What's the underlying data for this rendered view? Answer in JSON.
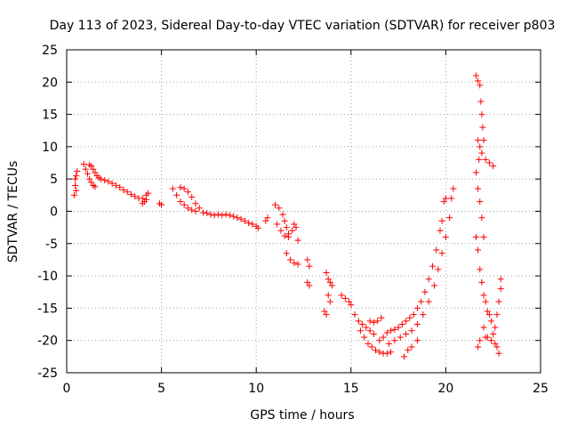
{
  "chart_data": {
    "type": "scatter",
    "title": "Day 113 of 2023, Sidereal Day-to-day VTEC variation (SDTVAR) for receiver p803",
    "xlabel": "GPS time / hours",
    "ylabel": "SDTVAR / TECUs",
    "xlim": [
      0,
      25
    ],
    "ylim": [
      -25,
      25
    ],
    "xticks": [
      0,
      5,
      10,
      15,
      20,
      25
    ],
    "yticks": [
      -25,
      -20,
      -15,
      -10,
      -5,
      0,
      5,
      10,
      15,
      20,
      25
    ],
    "grid": true,
    "marker": "+",
    "color": "#ff0000",
    "series": [
      {
        "name": "SDTVAR",
        "points": [
          [
            0.4,
            2.5
          ],
          [
            0.45,
            4.0
          ],
          [
            0.5,
            5.5
          ],
          [
            0.55,
            6.2
          ],
          [
            0.5,
            3.2
          ],
          [
            0.45,
            5.0
          ],
          [
            0.9,
            7.3
          ],
          [
            1.0,
            6.5
          ],
          [
            1.1,
            5.8
          ],
          [
            1.2,
            5.0
          ],
          [
            1.3,
            4.5
          ],
          [
            1.4,
            4.0
          ],
          [
            1.5,
            3.8
          ],
          [
            1.2,
            7.2
          ],
          [
            1.3,
            7.0
          ],
          [
            1.4,
            6.5
          ],
          [
            1.5,
            6.0
          ],
          [
            1.6,
            5.5
          ],
          [
            1.7,
            5.2
          ],
          [
            1.8,
            5.0
          ],
          [
            2.0,
            4.8
          ],
          [
            2.2,
            4.6
          ],
          [
            2.4,
            4.3
          ],
          [
            2.6,
            4.0
          ],
          [
            2.8,
            3.7
          ],
          [
            3.0,
            3.3
          ],
          [
            3.2,
            3.0
          ],
          [
            3.4,
            2.6
          ],
          [
            3.6,
            2.3
          ],
          [
            3.8,
            2.0
          ],
          [
            4.0,
            2.0
          ],
          [
            4.2,
            2.5
          ],
          [
            4.3,
            2.8
          ],
          [
            4.1,
            1.5
          ],
          [
            4.0,
            1.2
          ],
          [
            4.2,
            1.8
          ],
          [
            4.9,
            1.2
          ],
          [
            5.0,
            1.0
          ],
          [
            5.6,
            3.5
          ],
          [
            5.8,
            2.5
          ],
          [
            6.0,
            1.5
          ],
          [
            6.2,
            1.0
          ],
          [
            6.4,
            0.5
          ],
          [
            6.6,
            0.2
          ],
          [
            6.8,
            0
          ],
          [
            6.0,
            3.7
          ],
          [
            6.2,
            3.5
          ],
          [
            6.4,
            3.0
          ],
          [
            6.6,
            2.2
          ],
          [
            6.8,
            1.2
          ],
          [
            7.0,
            0.5
          ],
          [
            7.2,
            -0.2
          ],
          [
            7.4,
            -0.3
          ],
          [
            7.6,
            -0.5
          ],
          [
            7.8,
            -0.6
          ],
          [
            8.0,
            -0.5
          ],
          [
            8.2,
            -0.6
          ],
          [
            8.4,
            -0.5
          ],
          [
            8.6,
            -0.6
          ],
          [
            8.8,
            -0.8
          ],
          [
            9.0,
            -1.0
          ],
          [
            9.2,
            -1.2
          ],
          [
            9.4,
            -1.5
          ],
          [
            9.6,
            -1.8
          ],
          [
            9.8,
            -2.0
          ],
          [
            10.0,
            -2.3
          ],
          [
            10.1,
            -2.6
          ],
          [
            10.5,
            -1.5
          ],
          [
            10.6,
            -1.0
          ],
          [
            11.0,
            1.0
          ],
          [
            11.2,
            0.5
          ],
          [
            11.4,
            -0.5
          ],
          [
            11.5,
            -1.5
          ],
          [
            11.6,
            -2.5
          ],
          [
            11.7,
            -3.5
          ],
          [
            11.1,
            -2.0
          ],
          [
            11.3,
            -3.0
          ],
          [
            11.5,
            -3.8
          ],
          [
            11.7,
            -4.0
          ],
          [
            11.9,
            -3.0
          ],
          [
            12.0,
            -2.0
          ],
          [
            12.1,
            -2.5
          ],
          [
            12.2,
            -4.5
          ],
          [
            11.6,
            -6.5
          ],
          [
            11.8,
            -7.5
          ],
          [
            12.0,
            -8.0
          ],
          [
            12.2,
            -8.2
          ],
          [
            12.7,
            -7.5
          ],
          [
            12.8,
            -8.5
          ],
          [
            12.7,
            -11.0
          ],
          [
            12.8,
            -11.5
          ],
          [
            13.7,
            -9.5
          ],
          [
            13.8,
            -10.5
          ],
          [
            13.9,
            -11.0
          ],
          [
            14.0,
            -11.5
          ],
          [
            13.8,
            -13.0
          ],
          [
            13.9,
            -14.0
          ],
          [
            13.6,
            -15.5
          ],
          [
            13.7,
            -16.0
          ],
          [
            14.5,
            -13.0
          ],
          [
            14.7,
            -13.5
          ],
          [
            14.9,
            -14.0
          ],
          [
            15.0,
            -14.5
          ],
          [
            15.2,
            -16.0
          ],
          [
            15.4,
            -17.0
          ],
          [
            15.6,
            -17.5
          ],
          [
            15.8,
            -18.0
          ],
          [
            16.0,
            -18.5
          ],
          [
            16.2,
            -19.0
          ],
          [
            15.5,
            -18.5
          ],
          [
            15.7,
            -19.5
          ],
          [
            15.9,
            -20.5
          ],
          [
            16.1,
            -21.0
          ],
          [
            16.3,
            -21.5
          ],
          [
            16.5,
            -21.8
          ],
          [
            16.7,
            -22.0
          ],
          [
            16.9,
            -22.0
          ],
          [
            17.1,
            -21.8
          ],
          [
            16.5,
            -20.0
          ],
          [
            16.7,
            -19.5
          ],
          [
            16.9,
            -18.8
          ],
          [
            17.1,
            -18.5
          ],
          [
            17.3,
            -18.3
          ],
          [
            17.5,
            -18.0
          ],
          [
            17.7,
            -17.5
          ],
          [
            17.9,
            -17.0
          ],
          [
            18.1,
            -16.5
          ],
          [
            18.3,
            -16.0
          ],
          [
            18.5,
            -15.0
          ],
          [
            18.7,
            -14.0
          ],
          [
            18.9,
            -12.5
          ],
          [
            19.1,
            -10.5
          ],
          [
            19.3,
            -8.5
          ],
          [
            19.5,
            -6.0
          ],
          [
            19.7,
            -3.0
          ],
          [
            19.8,
            -1.5
          ],
          [
            19.9,
            1.5
          ],
          [
            20.0,
            2.0
          ],
          [
            16.0,
            -17.0
          ],
          [
            16.2,
            -17.2
          ],
          [
            16.4,
            -17.0
          ],
          [
            16.6,
            -16.5
          ],
          [
            17.0,
            -20.5
          ],
          [
            17.3,
            -20.0
          ],
          [
            17.6,
            -19.5
          ],
          [
            17.9,
            -19.0
          ],
          [
            18.2,
            -18.5
          ],
          [
            18.5,
            -17.5
          ],
          [
            18.8,
            -16.0
          ],
          [
            19.1,
            -14.0
          ],
          [
            19.4,
            -11.5
          ],
          [
            19.6,
            -9.0
          ],
          [
            19.8,
            -6.5
          ],
          [
            20.0,
            -4.0
          ],
          [
            20.2,
            -1.0
          ],
          [
            20.3,
            2.0
          ],
          [
            20.4,
            3.5
          ],
          [
            17.8,
            -22.5
          ],
          [
            18.0,
            -21.5
          ],
          [
            18.2,
            -21.0
          ],
          [
            18.5,
            -20.0
          ],
          [
            21.6,
            21.0
          ],
          [
            21.7,
            20.2
          ],
          [
            21.8,
            19.5
          ],
          [
            21.85,
            17.0
          ],
          [
            21.9,
            15.0
          ],
          [
            21.95,
            13.0
          ],
          [
            22.0,
            11.0
          ],
          [
            21.7,
            11.0
          ],
          [
            21.8,
            10.0
          ],
          [
            21.75,
            8.0
          ],
          [
            21.9,
            9.0
          ],
          [
            22.1,
            8.0
          ],
          [
            22.3,
            7.5
          ],
          [
            22.5,
            7.0
          ],
          [
            21.6,
            6.0
          ],
          [
            21.7,
            3.5
          ],
          [
            21.8,
            1.5
          ],
          [
            21.9,
            -1.0
          ],
          [
            22.0,
            -4.0
          ],
          [
            21.6,
            -4.0
          ],
          [
            21.7,
            -6.0
          ],
          [
            21.8,
            -9.0
          ],
          [
            21.9,
            -11.0
          ],
          [
            22.0,
            -13.0
          ],
          [
            22.1,
            -14.0
          ],
          [
            22.2,
            -15.5
          ],
          [
            22.3,
            -16.0
          ],
          [
            22.4,
            -17.0
          ],
          [
            22.0,
            -18.0
          ],
          [
            22.1,
            -19.5
          ],
          [
            21.8,
            -20.0
          ],
          [
            21.7,
            -21.0
          ],
          [
            22.2,
            -19.5
          ],
          [
            22.4,
            -20.0
          ],
          [
            22.6,
            -20.5
          ],
          [
            22.7,
            -21.0
          ],
          [
            22.8,
            -22.0
          ],
          [
            22.5,
            -19.0
          ],
          [
            22.6,
            -18.0
          ],
          [
            22.7,
            -16.0
          ],
          [
            22.8,
            -14.0
          ],
          [
            22.9,
            -12.0
          ],
          [
            22.9,
            -10.5
          ]
        ]
      }
    ]
  }
}
